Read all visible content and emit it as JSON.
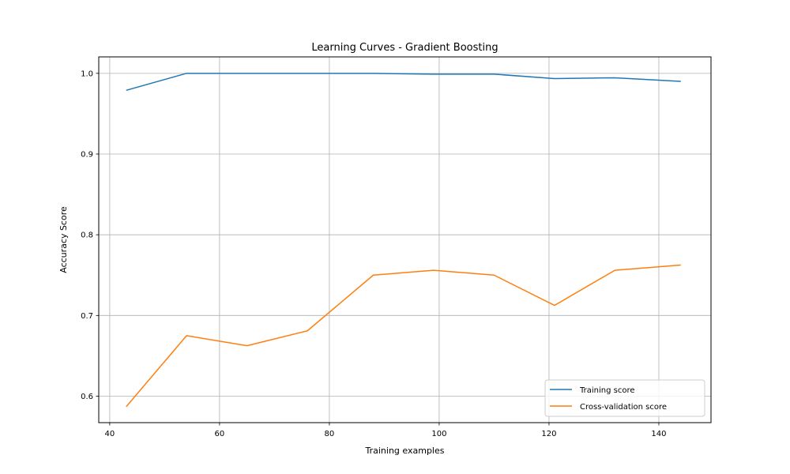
{
  "chart_data": {
    "type": "line",
    "title": "Learning Curves - Gradient Boosting",
    "xlabel": "Training examples",
    "ylabel": "Accuracy Score",
    "xlim": [
      38,
      149.5
    ],
    "ylim": [
      0.5672,
      1.0204
    ],
    "x_ticks": [
      40,
      60,
      80,
      100,
      120,
      140
    ],
    "y_ticks": [
      0.6,
      0.7,
      0.8,
      0.9,
      1.0
    ],
    "x_tick_labels": [
      "40",
      "60",
      "80",
      "100",
      "120",
      "140"
    ],
    "y_tick_labels": [
      "0.6",
      "0.7",
      "0.8",
      "0.9",
      "1.0"
    ],
    "grid": true,
    "legend_position": "lower-right",
    "x": [
      43,
      54,
      65,
      76,
      88,
      99,
      110,
      121,
      132,
      144
    ],
    "series": [
      {
        "name": "Training score",
        "color": "#1f77b4",
        "values": [
          0.979,
          1.0,
          1.0,
          1.0,
          1.0,
          0.999,
          0.999,
          0.9935,
          0.9945,
          0.99
        ]
      },
      {
        "name": "Cross-validation score",
        "color": "#ff7f0e",
        "values": [
          0.587,
          0.675,
          0.6625,
          0.681,
          0.75,
          0.756,
          0.75,
          0.7125,
          0.756,
          0.7625
        ]
      }
    ]
  }
}
